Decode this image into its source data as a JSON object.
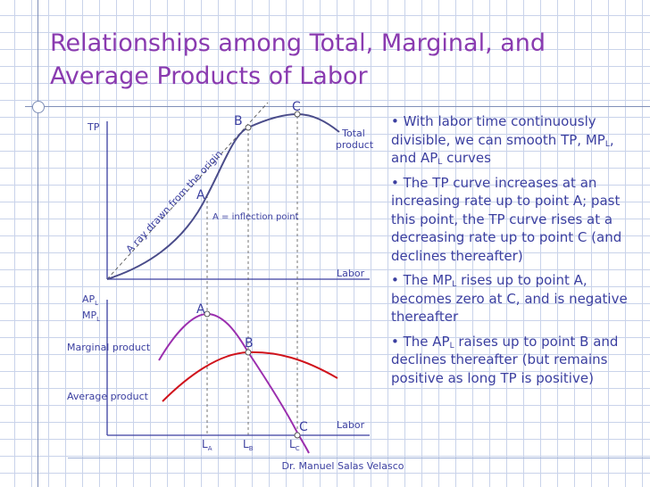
{
  "title": {
    "line1": "Relationships among Total, Marginal, and",
    "line2": "Average Products of Labor"
  },
  "colors": {
    "title": "#8a3bb0",
    "axis": "#3b3fa0",
    "total_product_curve": "#4a4c8a",
    "marginal_product_curve": "#9b2fae",
    "average_product_curve": "#d0131c",
    "text": "#3b3fa0",
    "grid": "#c9d3ea"
  },
  "diagram": {
    "top_panel": {
      "y_axis_label": "TP",
      "x_axis_label": "Labor",
      "curve_label_line1": "Total",
      "curve_label_line2": "product",
      "ray_label": "A ray drawn from the origin",
      "inflection_label": "A = inflection point",
      "point_labels": {
        "A": "A",
        "B": "B",
        "C": "C"
      }
    },
    "bottom_panel": {
      "y_axis_label_ap": "AP",
      "y_axis_label_ap_sub": "L",
      "y_axis_label_mp": "MP",
      "y_axis_label_mp_sub": "L",
      "x_axis_label": "Labor",
      "marginal_label": "Marginal product",
      "average_label": "Average product",
      "point_labels": {
        "A": "A",
        "B": "B",
        "C": "C"
      }
    },
    "labor_ticks": [
      {
        "main": "L",
        "sub": "A"
      },
      {
        "main": "L",
        "sub": "B"
      },
      {
        "main": "L",
        "sub": "C"
      }
    ]
  },
  "bullets": [
    {
      "segments": [
        {
          "t": "• With labor time continuously divisible, we can smooth TP, MP"
        },
        {
          "t": "L",
          "sub": true
        },
        {
          "t": ", and AP"
        },
        {
          "t": "L",
          "sub": true
        },
        {
          "t": " curves"
        }
      ]
    },
    {
      "segments": [
        {
          "t": "• The TP curve increases at an increasing rate up to point A; past this point, the TP curve rises at a decreasing rate up to point C (and declines thereafter)"
        }
      ]
    },
    {
      "segments": [
        {
          "t": "• The MP"
        },
        {
          "t": "L",
          "sub": true
        },
        {
          "t": " rises up to point A, becomes zero at C, and is negative thereafter"
        }
      ]
    },
    {
      "segments": [
        {
          "t": "• The AP"
        },
        {
          "t": "L",
          "sub": true
        },
        {
          "t": " raises up to point B and declines thereafter (but remains positive as long TP is positive)"
        }
      ]
    }
  ],
  "footer": "Dr. Manuel Salas Velasco"
}
